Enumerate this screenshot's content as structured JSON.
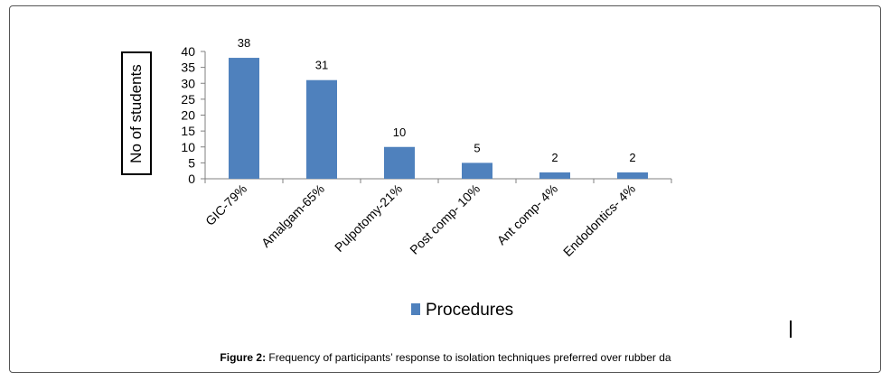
{
  "chart_data": {
    "type": "bar",
    "categories": [
      "GIC-79%",
      "Amalgam-65%",
      "Pulpotomy-21%",
      "Post comp- 10%",
      "Ant comp- 4%",
      "Endodontics- 4%"
    ],
    "series": [
      {
        "name": "Procedures",
        "values": [
          38,
          31,
          10,
          5,
          2,
          2
        ],
        "color": "#4F81BD"
      }
    ],
    "ylabel": "No of students",
    "ylim": [
      0,
      40
    ],
    "yticks": [
      0,
      5,
      10,
      15,
      20,
      25,
      30,
      35,
      40
    ],
    "data_labels": true,
    "grid": false,
    "legend": "bottom-center"
  },
  "caption": {
    "label": "Figure 2:",
    "text": " Frequency of participants’ response to isolation techniques preferred over rubber da"
  }
}
